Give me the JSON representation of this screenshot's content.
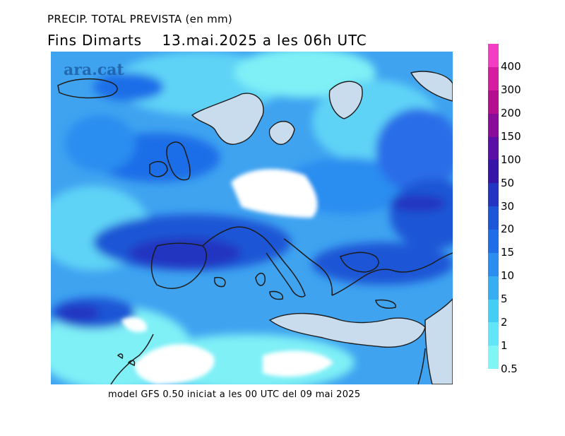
{
  "header": {
    "title": "PRECIP. TOTAL PREVISTA (en mm)",
    "subtitle": "Fins Dimarts    13.mai.2025 a les 06h UTC"
  },
  "brand": {
    "text": "ara.cat"
  },
  "footer": {
    "text": "model GFS 0.50 iniciat a les 00 UTC del 09 mai 2025"
  },
  "legend": {
    "labels": [
      "0.5",
      "1",
      "2",
      "5",
      "10",
      "15",
      "20",
      "30",
      "50",
      "100",
      "150",
      "200",
      "300",
      "400"
    ],
    "colors": [
      "#7ff5f6",
      "#60e6f8",
      "#45cef5",
      "#37aef0",
      "#2b8df0",
      "#1f6ee8",
      "#1d56d6",
      "#2435c1",
      "#3616a8",
      "#5a0fa6",
      "#8a0d9a",
      "#b30f8e",
      "#d41e9f",
      "#f33dc2"
    ]
  },
  "map": {
    "region": "Europe and Mediterranean",
    "colors": {
      "land_no_rain": "#c8dced",
      "sea_no_rain": "#ffffff",
      "coast": "#1c1c1c"
    }
  }
}
